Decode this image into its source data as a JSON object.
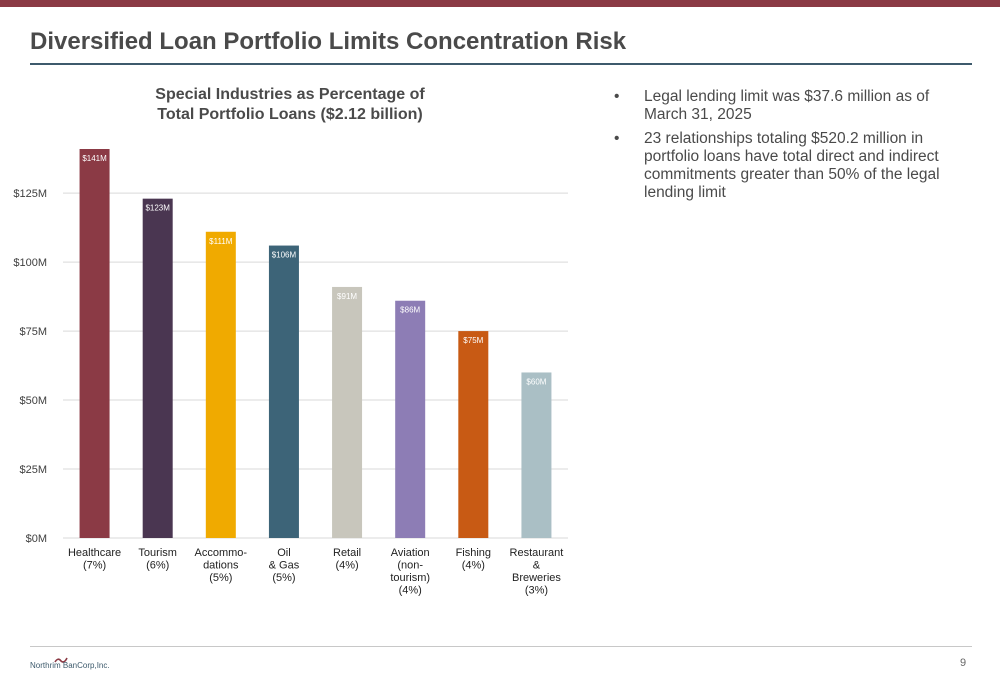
{
  "header": {
    "title": "Diversified Loan Portfolio Limits Concentration Risk"
  },
  "colors": {
    "top_bar": "#8b3a45",
    "title_rule": "#3d5a6c"
  },
  "chart_data": {
    "type": "bar",
    "title_lines": [
      "Special Industries as Percentage of",
      "Total Portfolio Loans ($2.12 billion)"
    ],
    "categories": [
      [
        "Healthcare",
        "(7%)"
      ],
      [
        "Tourism",
        "(6%)"
      ],
      [
        "Accommo-",
        "dations",
        "(5%)"
      ],
      [
        "Oil",
        "& Gas",
        "(5%)"
      ],
      [
        "Retail",
        "(4%)"
      ],
      [
        "Aviation",
        "(non-",
        "tourism)",
        "(4%)"
      ],
      [
        "Fishing",
        "(4%)"
      ],
      [
        "Restaurant",
        "&",
        "Breweries",
        "(3%)"
      ]
    ],
    "values": [
      141,
      123,
      111,
      106,
      91,
      86,
      75,
      60
    ],
    "value_labels": [
      "$141M",
      "$123M",
      "$111M",
      "$106M",
      "$91M",
      "$86M",
      "$75M",
      "$60M"
    ],
    "colors": [
      "#8b3a45",
      "#4a3651",
      "#f0aa00",
      "#3d6478",
      "#c8c6bc",
      "#8d7db5",
      "#c85a14",
      "#aabfc5"
    ],
    "label_colors": [
      "#ffffff",
      "#ffffff",
      "#ffffff",
      "#ffffff",
      "#ffffff",
      "#ffffff",
      "#ffffff",
      "#ffffff"
    ],
    "y_ticks": [
      0,
      25,
      50,
      75,
      100,
      125
    ],
    "y_tick_labels": [
      "$0M",
      "$25M",
      "$50M",
      "$75M",
      "$100M",
      "$125M"
    ],
    "ylim": [
      0,
      141
    ],
    "grid": true
  },
  "bullets": [
    "Legal lending limit was $37.6 million as of March 31, 2025",
    "23 relationships totaling $520.2 million in portfolio loans have total direct and indirect commitments greater than 50% of the legal lending limit"
  ],
  "bullet_symbol": "•",
  "footer": {
    "logo_text": "Northrim BanCorp,Inc.",
    "page_number": "9"
  }
}
